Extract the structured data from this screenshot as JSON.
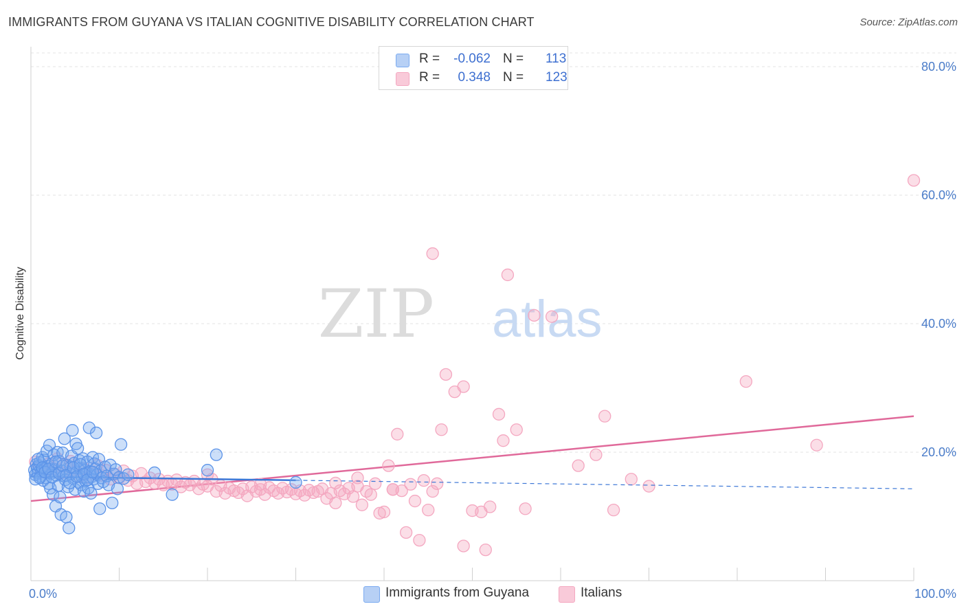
{
  "title": "IMMIGRANTS FROM GUYANA VS ITALIAN COGNITIVE DISABILITY CORRELATION CHART",
  "source": "Source: ZipAtlas.com",
  "watermark": {
    "zip": "ZIP",
    "atlas": "atlas"
  },
  "legend": {
    "series1": {
      "r_label": "R =",
      "r_value": "-0.062",
      "n_label": "N =",
      "n_value": "113"
    },
    "series2": {
      "r_label": "R =",
      "r_value": "0.348",
      "n_label": "N =",
      "n_value": "123"
    }
  },
  "bottom_legend": {
    "series1": "Immigrants from Guyana",
    "series2": "Italians"
  },
  "chart_data": {
    "type": "scatter",
    "title": "IMMIGRANTS FROM GUYANA VS ITALIAN COGNITIVE DISABILITY CORRELATION CHART",
    "xlabel": "",
    "ylabel": "Cognitive Disability",
    "xlim": [
      0,
      100
    ],
    "ylim": [
      0,
      80
    ],
    "x_tick_labels": [
      "0.0%",
      "100.0%"
    ],
    "y_ticks": [
      20,
      40,
      60,
      80
    ],
    "y_tick_labels": [
      "20.0%",
      "40.0%",
      "60.0%",
      "80.0%"
    ],
    "grid": "horizontal dashed",
    "legend_position": "top-center",
    "colors": {
      "series1": "#7aaaf0",
      "series1_line": "#3b76d6",
      "series2": "#f4a7c0",
      "series2_line": "#e0699a"
    },
    "series": [
      {
        "name": "Immigrants from Guyana",
        "r": -0.062,
        "n": 113,
        "trend": {
          "x": [
            0,
            100
          ],
          "y": [
            16.2,
            14.3
          ],
          "solid_until": 30
        },
        "points": [
          [
            0.4,
            17.2
          ],
          [
            0.5,
            16.5
          ],
          [
            0.6,
            18.1
          ],
          [
            0.7,
            17.6
          ],
          [
            0.8,
            16.8
          ],
          [
            0.9,
            17.9
          ],
          [
            1.0,
            18.4
          ],
          [
            1.1,
            16.2
          ],
          [
            1.2,
            17.0
          ],
          [
            1.3,
            19.2
          ],
          [
            1.4,
            15.6
          ],
          [
            1.5,
            18.8
          ],
          [
            1.6,
            17.4
          ],
          [
            1.7,
            16.0
          ],
          [
            1.8,
            20.2
          ],
          [
            1.9,
            17.8
          ],
          [
            2.0,
            15.1
          ],
          [
            2.1,
            21.1
          ],
          [
            2.2,
            14.4
          ],
          [
            2.3,
            16.7
          ],
          [
            2.4,
            18.2
          ],
          [
            2.5,
            13.4
          ],
          [
            2.6,
            19.6
          ],
          [
            2.7,
            17.3
          ],
          [
            2.8,
            11.6
          ],
          [
            2.9,
            16.4
          ],
          [
            3.0,
            20.0
          ],
          [
            3.1,
            14.8
          ],
          [
            3.2,
            18.6
          ],
          [
            3.3,
            13.0
          ],
          [
            3.4,
            10.3
          ],
          [
            3.5,
            17.1
          ],
          [
            3.6,
            19.9
          ],
          [
            3.7,
            16.3
          ],
          [
            3.8,
            22.1
          ],
          [
            3.9,
            15.7
          ],
          [
            4.0,
            9.9
          ],
          [
            4.1,
            18.0
          ],
          [
            4.2,
            14.6
          ],
          [
            4.3,
            8.2
          ],
          [
            4.4,
            16.6
          ],
          [
            4.5,
            17.7
          ],
          [
            4.6,
            19.4
          ],
          [
            4.7,
            23.4
          ],
          [
            4.8,
            15.9
          ],
          [
            4.9,
            18.3
          ],
          [
            5.0,
            14.2
          ],
          [
            5.1,
            21.3
          ],
          [
            5.2,
            16.9
          ],
          [
            5.3,
            20.6
          ],
          [
            5.4,
            15.3
          ],
          [
            5.5,
            18.7
          ],
          [
            5.6,
            17.5
          ],
          [
            5.7,
            14.9
          ],
          [
            5.8,
            16.1
          ],
          [
            5.9,
            19.0
          ],
          [
            6.0,
            13.9
          ],
          [
            6.1,
            17.2
          ],
          [
            6.2,
            15.5
          ],
          [
            6.3,
            16.8
          ],
          [
            6.4,
            18.5
          ],
          [
            6.5,
            14.4
          ],
          [
            6.6,
            23.8
          ],
          [
            6.7,
            17.0
          ],
          [
            6.8,
            13.6
          ],
          [
            6.9,
            16.2
          ],
          [
            7.0,
            19.2
          ],
          [
            7.1,
            15.8
          ],
          [
            7.2,
            18.2
          ],
          [
            7.3,
            17.4
          ],
          [
            7.4,
            23.0
          ],
          [
            7.5,
            16.5
          ],
          [
            7.6,
            15.1
          ],
          [
            7.7,
            18.9
          ],
          [
            7.8,
            11.2
          ],
          [
            7.9,
            17.1
          ],
          [
            8.0,
            16.0
          ],
          [
            8.2,
            15.4
          ],
          [
            8.4,
            17.7
          ],
          [
            8.6,
            16.3
          ],
          [
            8.8,
            14.9
          ],
          [
            9.0,
            18.0
          ],
          [
            9.2,
            12.1
          ],
          [
            9.4,
            16.6
          ],
          [
            9.6,
            17.3
          ],
          [
            9.8,
            14.3
          ],
          [
            10.0,
            16.1
          ],
          [
            10.2,
            21.2
          ],
          [
            10.5,
            15.9
          ],
          [
            11.0,
            16.5
          ],
          [
            0.5,
            15.8
          ],
          [
            0.8,
            18.9
          ],
          [
            1.0,
            16.0
          ],
          [
            1.3,
            17.6
          ],
          [
            1.6,
            16.9
          ],
          [
            2.0,
            17.4
          ],
          [
            2.4,
            16.1
          ],
          [
            2.8,
            18.5
          ],
          [
            3.2,
            16.7
          ],
          [
            3.6,
            17.9
          ],
          [
            4.0,
            16.4
          ],
          [
            4.4,
            15.2
          ],
          [
            4.8,
            17.6
          ],
          [
            5.2,
            16.2
          ],
          [
            5.6,
            18.1
          ],
          [
            6.0,
            16.6
          ],
          [
            6.4,
            15.7
          ],
          [
            7.0,
            16.9
          ],
          [
            14.0,
            16.8
          ],
          [
            16.0,
            13.4
          ],
          [
            20.0,
            17.2
          ],
          [
            21.0,
            19.6
          ],
          [
            30.0,
            15.3
          ]
        ]
      },
      {
        "name": "Italians",
        "r": 0.348,
        "n": 123,
        "trend": {
          "x": [
            0,
            100
          ],
          "y": [
            12.4,
            25.6
          ]
        },
        "points": [
          [
            0.5,
            18.5
          ],
          [
            1.0,
            17.6
          ],
          [
            1.5,
            16.9
          ],
          [
            2.0,
            18.2
          ],
          [
            2.5,
            17.4
          ],
          [
            3.0,
            19.0
          ],
          [
            3.5,
            16.8
          ],
          [
            4.0,
            17.9
          ],
          [
            4.5,
            18.6
          ],
          [
            5.0,
            17.0
          ],
          [
            5.5,
            16.2
          ],
          [
            6.0,
            17.5
          ],
          [
            6.5,
            16.0
          ],
          [
            7.0,
            16.9
          ],
          [
            7.5,
            18.0
          ],
          [
            8.0,
            16.4
          ],
          [
            8.5,
            17.2
          ],
          [
            9.0,
            15.8
          ],
          [
            9.5,
            16.6
          ],
          [
            10.0,
            16.0
          ],
          [
            10.5,
            17.1
          ],
          [
            11.0,
            15.6
          ],
          [
            11.5,
            16.3
          ],
          [
            12.0,
            15.1
          ],
          [
            12.5,
            16.7
          ],
          [
            13.0,
            15.4
          ],
          [
            13.5,
            16.0
          ],
          [
            14.0,
            15.2
          ],
          [
            14.5,
            15.8
          ],
          [
            15.0,
            14.9
          ],
          [
            15.5,
            15.5
          ],
          [
            16.0,
            15.0
          ],
          [
            16.5,
            15.7
          ],
          [
            17.0,
            14.6
          ],
          [
            17.5,
            15.3
          ],
          [
            18.0,
            14.9
          ],
          [
            18.5,
            15.5
          ],
          [
            19.0,
            14.3
          ],
          [
            19.5,
            15.0
          ],
          [
            20.0,
            14.7
          ],
          [
            20.5,
            15.8
          ],
          [
            21.0,
            13.9
          ],
          [
            21.5,
            14.8
          ],
          [
            22.0,
            13.6
          ],
          [
            22.5,
            14.4
          ],
          [
            23.0,
            14.0
          ],
          [
            23.5,
            13.7
          ],
          [
            24.0,
            14.3
          ],
          [
            24.5,
            13.2
          ],
          [
            25.0,
            14.6
          ],
          [
            25.5,
            13.9
          ],
          [
            26.0,
            14.2
          ],
          [
            26.5,
            13.4
          ],
          [
            27.0,
            14.5
          ],
          [
            27.5,
            14.0
          ],
          [
            28.0,
            13.6
          ],
          [
            28.5,
            14.4
          ],
          [
            29.0,
            13.8
          ],
          [
            29.5,
            14.2
          ],
          [
            30.0,
            13.5
          ],
          [
            30.5,
            14.0
          ],
          [
            31.0,
            13.3
          ],
          [
            31.5,
            14.1
          ],
          [
            32.0,
            13.7
          ],
          [
            32.5,
            13.9
          ],
          [
            33.0,
            14.3
          ],
          [
            33.5,
            12.8
          ],
          [
            34.0,
            13.6
          ],
          [
            34.5,
            12.1
          ],
          [
            35.0,
            14.0
          ],
          [
            35.5,
            13.5
          ],
          [
            36.0,
            14.4
          ],
          [
            36.5,
            13.1
          ],
          [
            37.0,
            14.7
          ],
          [
            37.5,
            11.8
          ],
          [
            38.0,
            13.9
          ],
          [
            38.5,
            13.4
          ],
          [
            39.0,
            15.1
          ],
          [
            39.5,
            10.5
          ],
          [
            40.0,
            10.7
          ],
          [
            40.5,
            17.9
          ],
          [
            41.0,
            14.2
          ],
          [
            41.5,
            22.8
          ],
          [
            42.0,
            14.0
          ],
          [
            42.5,
            7.5
          ],
          [
            43.0,
            15.0
          ],
          [
            43.5,
            12.4
          ],
          [
            44.0,
            6.3
          ],
          [
            44.5,
            15.6
          ],
          [
            45.0,
            11.0
          ],
          [
            45.5,
            13.9
          ],
          [
            46.0,
            15.1
          ],
          [
            47.0,
            32.1
          ],
          [
            48.0,
            29.4
          ],
          [
            49.0,
            30.2
          ],
          [
            50.0,
            10.9
          ],
          [
            51.0,
            10.7
          ],
          [
            52.0,
            11.5
          ],
          [
            53.0,
            25.9
          ],
          [
            53.5,
            21.8
          ],
          [
            54.0,
            47.6
          ],
          [
            55.0,
            23.5
          ],
          [
            56.0,
            11.2
          ],
          [
            57.0,
            41.3
          ],
          [
            59.0,
            41.1
          ],
          [
            62.0,
            17.9
          ],
          [
            64.0,
            19.6
          ],
          [
            65.0,
            25.6
          ],
          [
            66.0,
            11.0
          ],
          [
            68.0,
            15.8
          ],
          [
            70.0,
            14.7
          ],
          [
            81.0,
            31.0
          ],
          [
            89.0,
            21.1
          ],
          [
            100.0,
            62.3
          ],
          [
            49.0,
            5.4
          ],
          [
            51.5,
            4.8
          ],
          [
            46.5,
            23.5
          ],
          [
            45.5,
            50.9
          ],
          [
            41.0,
            14.2
          ],
          [
            37.0,
            16.0
          ],
          [
            34.5,
            15.2
          ],
          [
            26.0,
            15.0
          ],
          [
            20.0,
            16.5
          ]
        ]
      }
    ]
  }
}
